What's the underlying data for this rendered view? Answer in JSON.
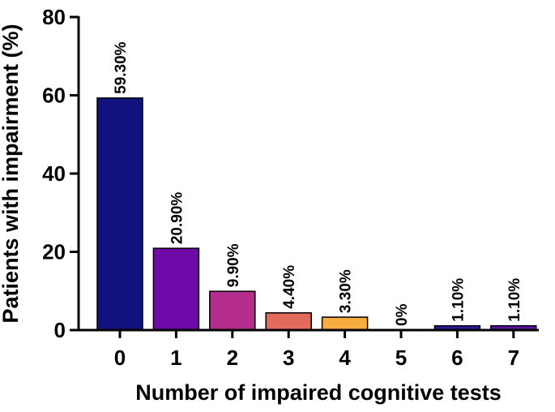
{
  "chart_data": {
    "type": "bar",
    "title": "",
    "xlabel": "Number of impaired cognitive tests",
    "ylabel": "Patients with impairment (%)",
    "categories": [
      "0",
      "1",
      "2",
      "3",
      "4",
      "5",
      "6",
      "7"
    ],
    "values": [
      59.3,
      20.9,
      9.9,
      4.4,
      3.3,
      0,
      1.1,
      1.1
    ],
    "data_labels": [
      "59.30%",
      "20.90%",
      "9.90%",
      "4.40%",
      "3.30%",
      "0%",
      "1.10%",
      "1.10%"
    ],
    "bar_colors": [
      "#12127f",
      "#6f0aa8",
      "#b42d8c",
      "#e36a5e",
      "#f7ad3f",
      "#f7ad3f",
      "#2a1b99",
      "#5a17a5"
    ],
    "ylim": [
      0,
      80
    ],
    "yticks": [
      0,
      20,
      40,
      60,
      80
    ],
    "grid": false,
    "legend": "none"
  }
}
